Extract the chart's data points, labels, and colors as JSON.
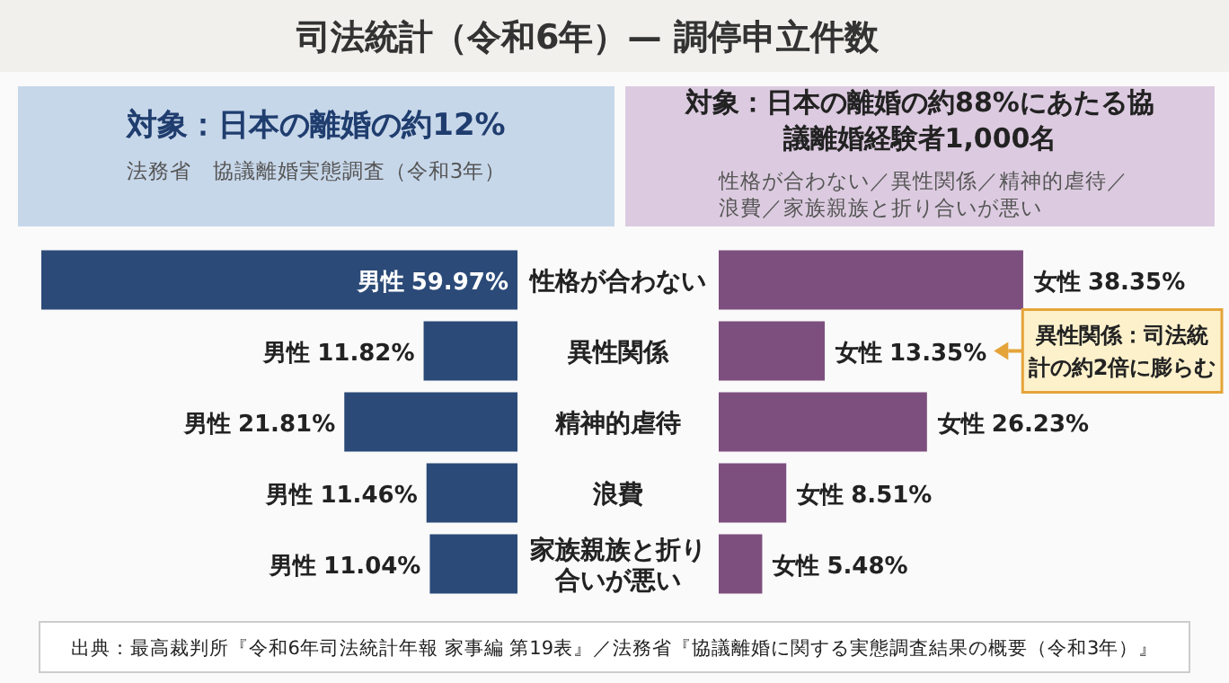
{
  "chart_data": [
    {
      "type": "bar",
      "orientation": "horizontal",
      "title": "対象：日本の離婚の約12%",
      "subtitle": "法務省　協議離婚実態調査（令和3年）",
      "categories": [
        "性格が合わない",
        "異性関係",
        "精神的虐待",
        "浪費",
        "家族親族と折り合いが悪い"
      ],
      "series": [
        {
          "name": "男性",
          "color": "#2b4a78",
          "values": [
            59.97,
            11.82,
            21.81,
            11.46,
            11.04
          ],
          "value_labels": [
            "59.97%",
            "11.82%",
            "21.81%",
            "11.46%",
            "11.04%"
          ]
        }
      ],
      "annotations": [
        "司法統計（令和6年）— 調停申立件数",
        "出典：最高裁判所『令和6年司法統計年報 家事編 第19表』／法務省『協議離婚に関する実態調査結果の概要（令和3年）』"
      ]
    },
    {
      "type": "bar",
      "orientation": "horizontal",
      "title": "対象：日本の離婚の約88%にあたる協議離婚経験者1,000名",
      "subtitle": "性格が合わない／異性関係／精神的虐待／浪費／家族親族と折り合いが悪い",
      "categories": [
        null,
        null,
        null,
        null,
        null
      ],
      "series": [
        {
          "name": "女性",
          "color": "#7d4f7e",
          "values": [
            38.35,
            13.35,
            26.23,
            8.51,
            5.48
          ],
          "value_labels": [
            "38.35%",
            "13.35%",
            "26.23%",
            "8.51%",
            "5.48%"
          ]
        }
      ],
      "annotations": [
        "異性関係：司法統計の約2倍に膨らむ"
      ]
    }
  ]
}
